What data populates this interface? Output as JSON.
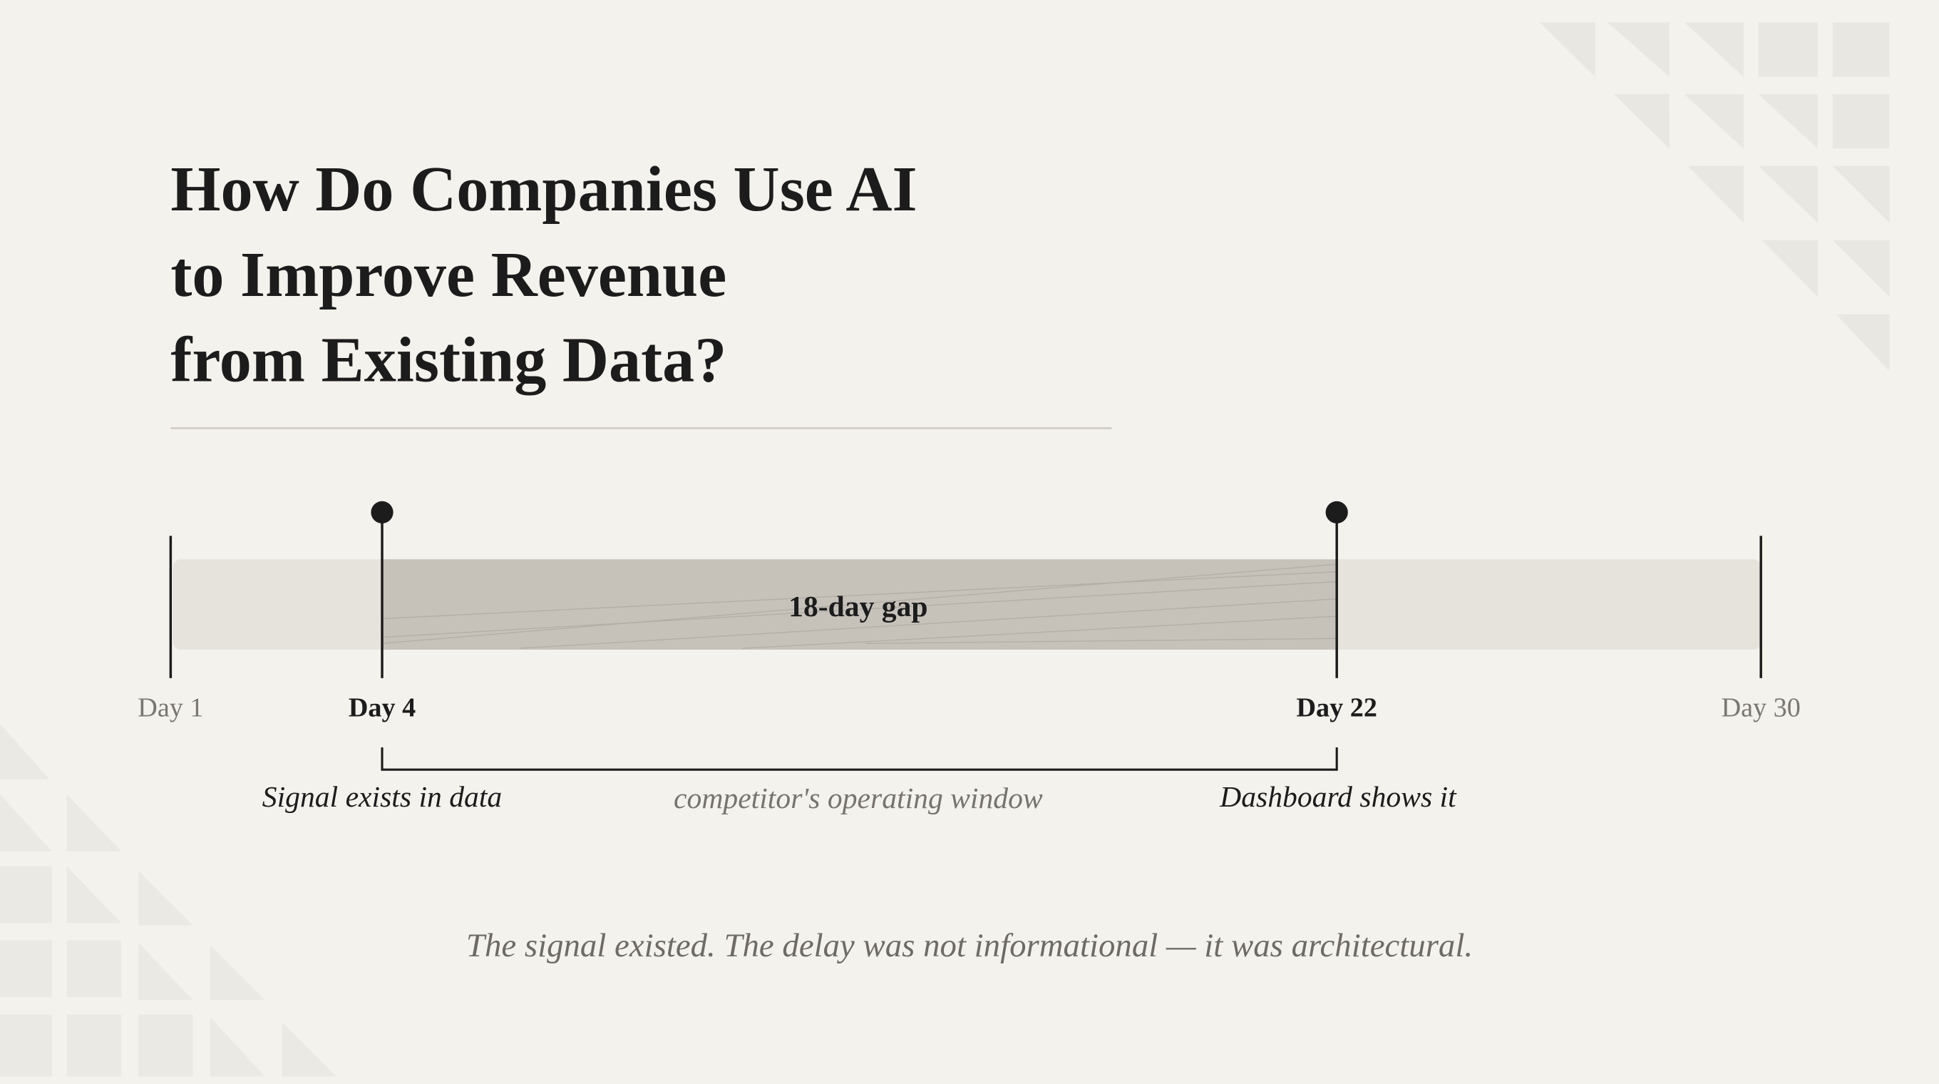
{
  "title": {
    "lines": [
      "How Do Companies Use AI",
      "to Improve Revenue",
      "from Existing Data?"
    ]
  },
  "timeline": {
    "gap_label": "18-day gap",
    "ticks": [
      "Day 1",
      "Day 4",
      "Day 22",
      "Day 30"
    ],
    "annotations": [
      "Signal exists in data",
      "competitor's operating window",
      "Dashboard shows it"
    ]
  },
  "footer": "The signal existed. The delay was not informational — it was architectural."
}
